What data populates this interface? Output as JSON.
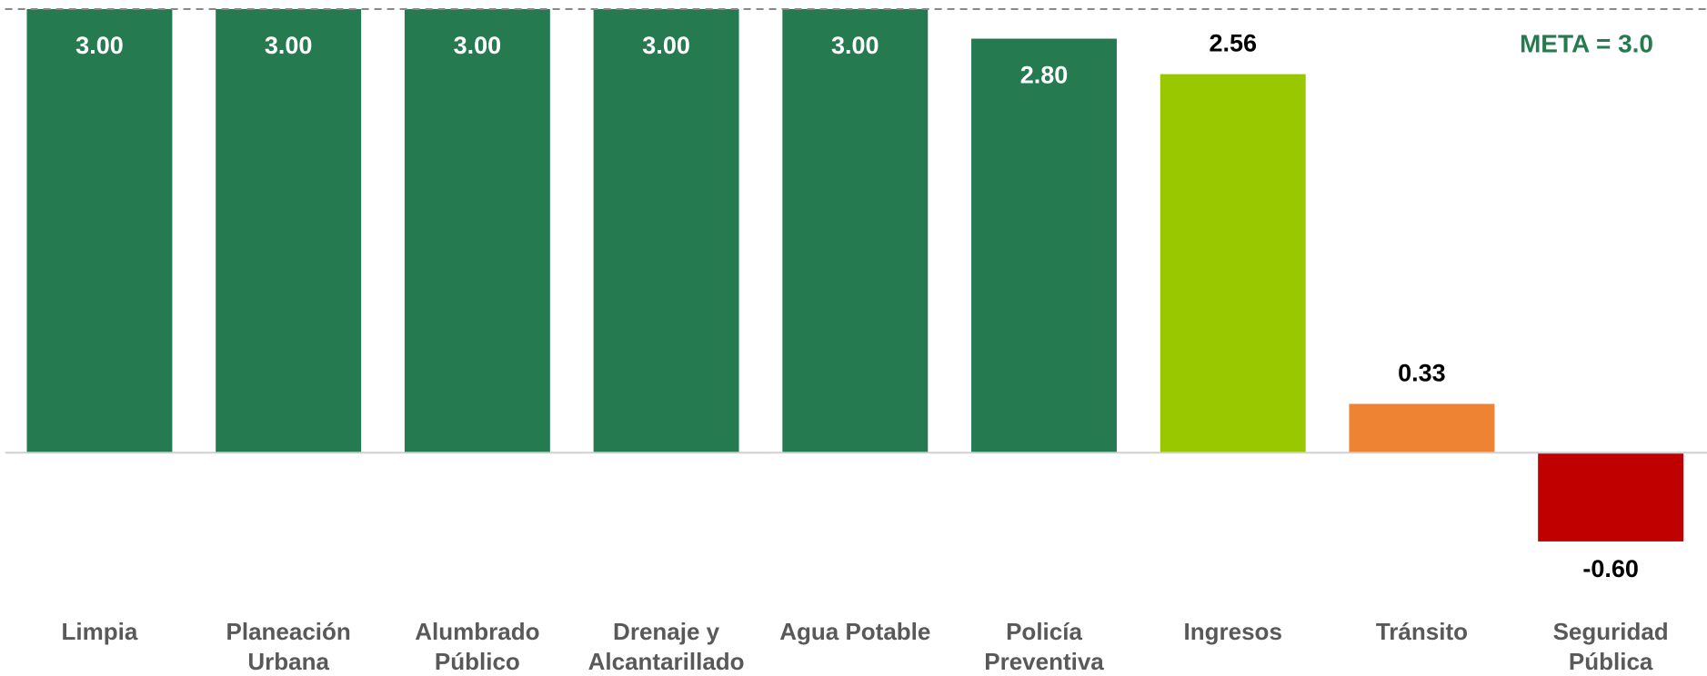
{
  "chart_data": {
    "type": "bar",
    "categories": [
      "Limpia",
      [
        "Planeación",
        "Urbana"
      ],
      [
        "Alumbrado",
        "Público"
      ],
      [
        "Drenaje y",
        "Alcantarillado"
      ],
      "Agua Potable",
      [
        "Policía",
        "Preventiva"
      ],
      "Ingresos",
      "Tránsito",
      [
        "Seguridad",
        "Pública"
      ]
    ],
    "values": [
      3,
      3,
      3,
      3,
      3,
      2.8,
      2.56,
      0.33,
      -0.6
    ],
    "value_labels": [
      "3.00",
      "3.00",
      "3.00",
      "3.00",
      "3.00",
      "2.80",
      "2.56",
      "0.33",
      "-0.60"
    ],
    "colors": [
      "#267a50",
      "#267a50",
      "#267a50",
      "#267a50",
      "#267a50",
      "#267a50",
      "#99c800",
      "#ee8433",
      "#c00000"
    ],
    "label_colors": [
      "#ffffff",
      "#ffffff",
      "#ffffff",
      "#ffffff",
      "#ffffff",
      "#ffffff",
      "#000000",
      "#000000",
      "#000000"
    ],
    "ylim": [
      -1,
      3
    ],
    "reference_line": {
      "value": 3,
      "label": "META = 3.0",
      "color": "#267a50"
    }
  }
}
